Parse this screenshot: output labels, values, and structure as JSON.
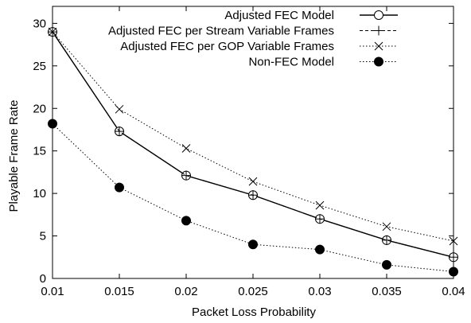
{
  "chart_data": {
    "type": "line",
    "title": "",
    "xlabel": "Packet Loss Probability",
    "ylabel": "Playable Frame Rate",
    "xlim": [
      0.01,
      0.04
    ],
    "ylim": [
      0,
      32
    ],
    "x_ticks": [
      "0.01",
      "0.015",
      "0.02",
      "0.025",
      "0.03",
      "0.035",
      "0.04"
    ],
    "y_ticks": [
      "0",
      "5",
      "10",
      "15",
      "20",
      "25",
      "30"
    ],
    "grid": false,
    "legend_position": "top-right",
    "x": [
      0.01,
      0.015,
      0.02,
      0.025,
      0.03,
      0.035,
      0.04
    ],
    "series": [
      {
        "name": "Adjusted FEC Model",
        "marker": "open-circle",
        "line": "solid",
        "values": [
          29.0,
          17.3,
          12.1,
          9.8,
          7.0,
          4.5,
          2.5
        ]
      },
      {
        "name": "Adjusted FEC per Stream Variable Frames",
        "marker": "plus",
        "line": "dashed",
        "values": [
          29.0,
          17.3,
          12.1,
          9.8,
          7.0,
          4.5,
          2.5
        ]
      },
      {
        "name": "Adjusted FEC per GOP Variable Frames",
        "marker": "cross",
        "line": "dotted",
        "values": [
          29.0,
          19.9,
          15.3,
          11.4,
          8.6,
          6.1,
          4.4
        ]
      },
      {
        "name": "Non-FEC Model",
        "marker": "filled-circle",
        "line": "dotted",
        "values": [
          18.2,
          10.7,
          6.8,
          4.0,
          3.4,
          1.6,
          0.8
        ]
      }
    ]
  }
}
